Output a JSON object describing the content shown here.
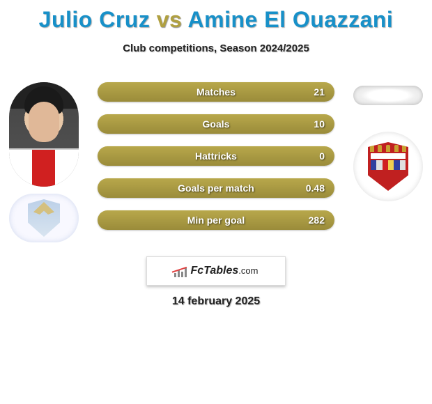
{
  "title": {
    "player1": "Julio Cruz",
    "vs": "vs",
    "player2": "Amine El Ouazzani",
    "player1_color": "#1890c8",
    "player2_color": "#1890c8",
    "vs_color": "#b0a040"
  },
  "subtitle": "Club competitions, Season 2024/2025",
  "bars": {
    "bg_color": "#a89840",
    "text_color": "#ffffff",
    "rows": [
      {
        "label": "Matches",
        "value": "21",
        "right_fill_pct": 100
      },
      {
        "label": "Goals",
        "value": "10",
        "right_fill_pct": 100
      },
      {
        "label": "Hattricks",
        "value": "0",
        "right_fill_pct": 100
      },
      {
        "label": "Goals per match",
        "value": "0.48",
        "right_fill_pct": 100
      },
      {
        "label": "Min per goal",
        "value": "282",
        "right_fill_pct": 100
      }
    ]
  },
  "left_player": {
    "has_photo": true,
    "shirt_colors": [
      "#ffffff",
      "#d02020",
      "#ffffff"
    ],
    "club_crest": "lazio"
  },
  "right_player": {
    "has_photo": false,
    "club_crest": "braga"
  },
  "braga_band_colors": [
    "#3040a0",
    "#e0e0e0",
    "#d02020",
    "#f0d050",
    "#3040a0",
    "#e0e0e0"
  ],
  "footer": {
    "brand": "FcTables",
    "brand_suffix": ".com",
    "date": "14 february 2025"
  }
}
